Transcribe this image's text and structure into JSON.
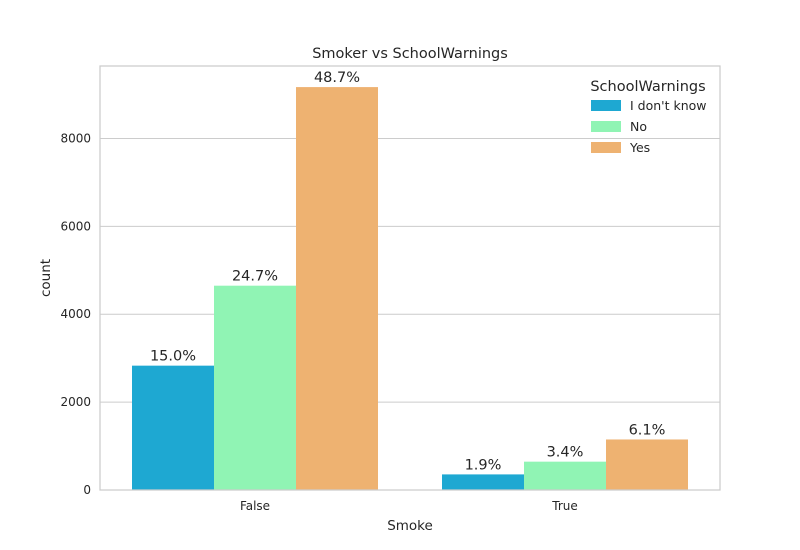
{
  "chart_data": {
    "type": "bar",
    "title": "Smoker vs SchoolWarnings",
    "xlabel": "Smoke",
    "ylabel": "count",
    "categories": [
      "False",
      "True"
    ],
    "ylim": [
      0,
      9650
    ],
    "yticks": [
      0,
      2000,
      4000,
      6000,
      8000
    ],
    "grid": true,
    "legend": {
      "title": "SchoolWarnings",
      "placement": "top-right"
    },
    "series": [
      {
        "name": "I don't know",
        "color": "#1ea8d2",
        "values": [
          2830,
          355
        ],
        "labels": [
          "15.0%",
          "1.9%"
        ]
      },
      {
        "name": "No",
        "color": "#90f4b4",
        "values": [
          4650,
          645
        ],
        "labels": [
          "24.7%",
          "3.4%"
        ]
      },
      {
        "name": "Yes",
        "color": "#eeb271",
        "values": [
          9170,
          1150
        ],
        "labels": [
          "48.7%",
          "6.1%"
        ]
      }
    ]
  }
}
